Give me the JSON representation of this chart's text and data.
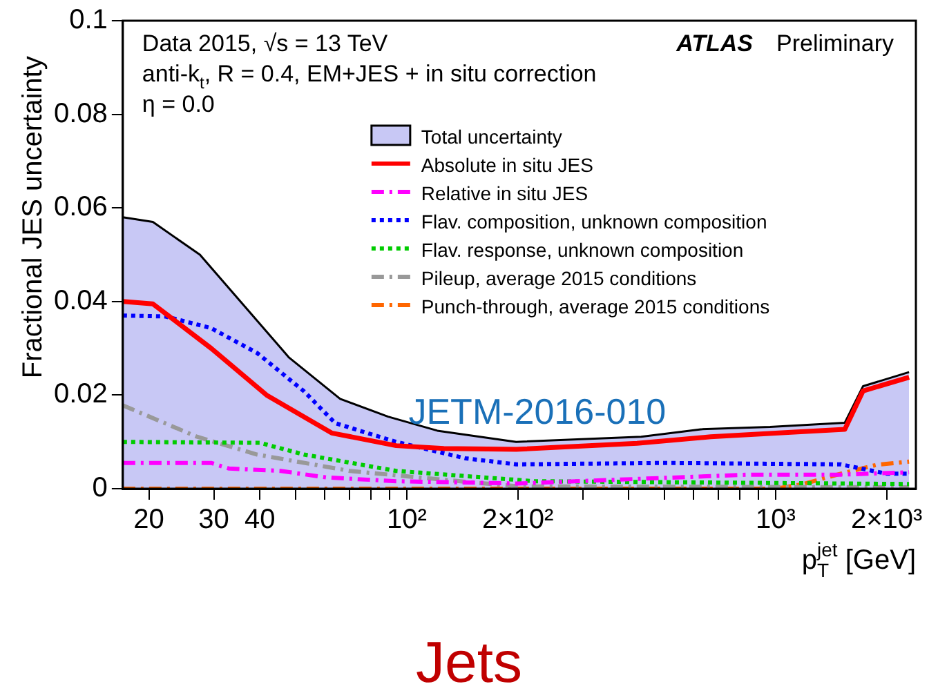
{
  "chart_data": {
    "type": "line",
    "xlabel": "p$_{T}$$^{jet}$ [GeV]",
    "ylabel": "Fractional JES uncertainty",
    "annotations": [
      "Data 2015, √s = 13 TeV",
      "anti-k$_{t}$, R = 0.4, EM+JES + in situ correction",
      "η = 0.0",
      "ATLAS",
      "Preliminary",
      "JETM-2016-010",
      "Jets"
    ],
    "log": "x",
    "xlim": [
      17,
      2400
    ],
    "ylim": [
      0,
      0.1
    ],
    "xticks": [
      20,
      30,
      40,
      {
        "value": 50,
        "label": null
      },
      {
        "value": 60,
        "label": null
      },
      {
        "value": 70,
        "label": null
      },
      {
        "value": 80,
        "label": null
      },
      {
        "value": 90,
        "label": null
      },
      {
        "value": 100,
        "label": "10²"
      },
      {
        "value": 200,
        "label": "2×10²"
      },
      {
        "value": 300,
        "label": null
      },
      {
        "value": 400,
        "label": null
      },
      {
        "value": 500,
        "label": null
      },
      {
        "value": 600,
        "label": null
      },
      {
        "value": 700,
        "label": null
      },
      {
        "value": 800,
        "label": null
      },
      {
        "value": 900,
        "label": null
      },
      {
        "value": 1000,
        "label": "10³"
      },
      {
        "value": 2000,
        "label": "2×10³"
      }
    ],
    "yticks": [
      0,
      0.02,
      0.04,
      0.06,
      0.08,
      0.1
    ],
    "grid": false,
    "legend": "top right",
    "series": [
      {
        "name": "Total uncertainty",
        "type": "area",
        "color": "#c8c8f5",
        "x": [
          17,
          20.5,
          27.5,
          48,
          66,
          89,
          121,
          198,
          432,
          627,
          966,
          1540,
          1726,
          2300
        ],
        "values": [
          0.058,
          0.057,
          0.05,
          0.028,
          0.0192,
          0.0154,
          0.0124,
          0.01,
          0.0111,
          0.0127,
          0.0132,
          0.0141,
          0.0219,
          0.0249
        ]
      },
      {
        "name": "Absolute in situ JES",
        "color": "#ff0000",
        "line_style": "solid",
        "x": [
          17,
          20.5,
          29.5,
          41.7,
          62.6,
          93.6,
          126,
          198,
          421,
          667,
          1123,
          1540,
          1726,
          2300
        ],
        "values": [
          0.04,
          0.0395,
          0.03,
          0.02,
          0.0119,
          0.0092,
          0.0086,
          0.0084,
          0.0097,
          0.0111,
          0.0121,
          0.0127,
          0.0209,
          0.0238
        ]
      },
      {
        "name": "Relative in situ JES",
        "color": "#ff00ff",
        "line_style": "dashed",
        "x": [
          17,
          29.5,
          33,
          45.5,
          60.6,
          93.6,
          200,
          841,
          1500,
          2300
        ],
        "values": [
          0.0055,
          0.0055,
          0.0043,
          0.0038,
          0.0024,
          0.0016,
          0.0011,
          0.003,
          0.003,
          0.0035
        ]
      },
      {
        "name": "Flav. composition, unknown composition",
        "color": "#0000ff",
        "line_style": "dotted",
        "x": [
          17,
          22.2,
          29.5,
          39.3,
          52.7,
          64,
          93.6,
          144,
          198,
          500,
          1500,
          2000,
          2300
        ],
        "values": [
          0.037,
          0.0368,
          0.0343,
          0.029,
          0.0208,
          0.014,
          0.01,
          0.0065,
          0.0052,
          0.0055,
          0.0052,
          0.0032,
          0.0032
        ]
      },
      {
        "name": "Flav. response, unknown composition",
        "color": "#00cc00",
        "line_style": "dotted",
        "x": [
          17,
          40,
          52.7,
          93.6,
          222,
          2300
        ],
        "values": [
          0.01,
          0.0098,
          0.0073,
          0.0038,
          0.0016,
          0.001
        ]
      },
      {
        "name": "Pileup, average 2015 conditions",
        "color": "#999999",
        "line_style": "dashed",
        "x": [
          17,
          27,
          39.3,
          70,
          126,
          200,
          2300
        ],
        "values": [
          0.0178,
          0.0111,
          0.0073,
          0.0038,
          0.0019,
          0.0005,
          0.0003
        ]
      },
      {
        "name": "Punch-through, average 2015 conditions",
        "color": "#ff6600",
        "line_style": "dashed",
        "x": [
          17,
          1000,
          1190,
          1500,
          1880,
          2300
        ],
        "values": [
          0,
          0,
          0.001,
          0.0032,
          0.0051,
          0.0058
        ]
      }
    ]
  }
}
